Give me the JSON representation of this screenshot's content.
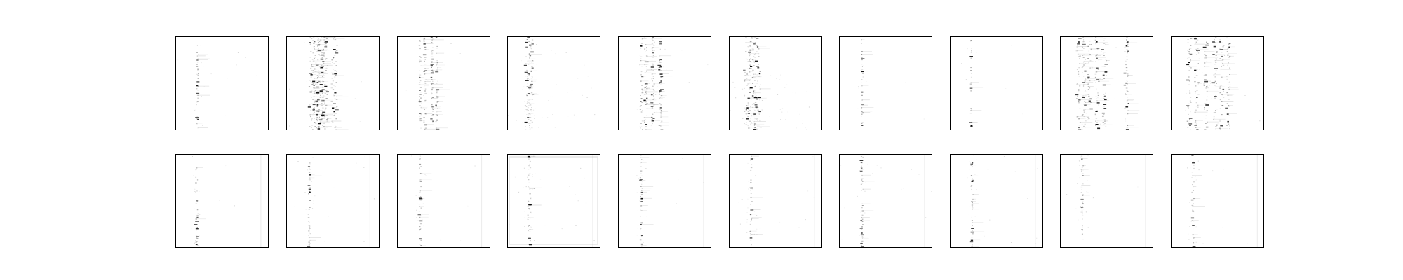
{
  "figure": {
    "background": "#ffffff",
    "frame_color": "#000000",
    "ink_color": "#000000"
  },
  "chart_data": {
    "type": "heatmap",
    "grid": {
      "rows": 2,
      "cols": 10
    },
    "colormap": "grayscale-inverted",
    "axes": {
      "ticks": false,
      "labels": false
    },
    "panels": [
      {
        "row": 0,
        "col": 0,
        "columns": [
          0.24
        ],
        "density": 0.55,
        "spread": 0.01,
        "noise": 0.02
      },
      {
        "row": 0,
        "col": 1,
        "columns": [
          0.28,
          0.32,
          0.37,
          0.42,
          0.52
        ],
        "density": 0.8,
        "spread": 0.03,
        "noise": 0.03
      },
      {
        "row": 0,
        "col": 2,
        "columns": [
          0.25,
          0.3,
          0.38,
          0.43
        ],
        "density": 0.55,
        "spread": 0.01,
        "noise": 0.02
      },
      {
        "row": 0,
        "col": 3,
        "columns": [
          0.22,
          0.26
        ],
        "density": 0.6,
        "spread": 0.025,
        "noise": 0.1,
        "dense_lower": true
      },
      {
        "row": 0,
        "col": 4,
        "columns": [
          0.25,
          0.3,
          0.38,
          0.46
        ],
        "density": 0.6,
        "spread": 0.015,
        "noise": 0.04
      },
      {
        "row": 0,
        "col": 5,
        "columns": [
          0.2,
          0.25,
          0.3
        ],
        "density": 0.7,
        "spread": 0.04,
        "noise": 0.14,
        "dense_lower": true
      },
      {
        "row": 0,
        "col": 6,
        "columns": [
          0.25
        ],
        "density": 0.6,
        "spread": 0.01,
        "noise": 0.01
      },
      {
        "row": 0,
        "col": 7,
        "columns": [
          0.23
        ],
        "density": 0.35,
        "spread": 0.005,
        "noise": 0.01
      },
      {
        "row": 0,
        "col": 8,
        "columns": [
          0.2,
          0.26,
          0.32,
          0.4,
          0.48,
          0.72
        ],
        "density": 0.55,
        "spread": 0.02,
        "noise": 0.03
      },
      {
        "row": 0,
        "col": 9,
        "columns": [
          0.2,
          0.28,
          0.38,
          0.48,
          0.55,
          0.62
        ],
        "density": 0.6,
        "spread": 0.02,
        "noise": 0.03
      },
      {
        "row": 1,
        "col": 0,
        "columns": [
          0.23
        ],
        "density": 0.45,
        "spread": 0.01,
        "noise": 0.02,
        "right_edge": 0.92
      },
      {
        "row": 1,
        "col": 1,
        "columns": [
          0.25
        ],
        "density": 0.45,
        "spread": 0.01,
        "noise": 0.03,
        "right_edge": 0.9
      },
      {
        "row": 1,
        "col": 2,
        "columns": [
          0.25
        ],
        "density": 0.45,
        "spread": 0.01,
        "noise": 0.03,
        "right_edge": 0.91
      },
      {
        "row": 1,
        "col": 3,
        "columns": [
          0.24
        ],
        "density": 0.5,
        "spread": 0.015,
        "noise": 0.06,
        "right_edge": 0.92,
        "frame_inner": true
      },
      {
        "row": 1,
        "col": 4,
        "columns": [
          0.25
        ],
        "density": 0.5,
        "spread": 0.01,
        "noise": 0.03,
        "right_edge": 0.92
      },
      {
        "row": 1,
        "col": 5,
        "columns": [
          0.24
        ],
        "density": 0.45,
        "spread": 0.01,
        "noise": 0.04,
        "right_edge": 0.92
      },
      {
        "row": 1,
        "col": 6,
        "columns": [
          0.25
        ],
        "density": 0.5,
        "spread": 0.01,
        "noise": 0.03,
        "right_edge": 0.92
      },
      {
        "row": 1,
        "col": 7,
        "columns": [
          0.24
        ],
        "density": 0.4,
        "spread": 0.01,
        "noise": 0.03,
        "right_edge": 0.92
      },
      {
        "row": 1,
        "col": 8,
        "columns": [
          0.24
        ],
        "density": 0.5,
        "spread": 0.01,
        "noise": 0.03,
        "right_edge": 0.92
      },
      {
        "row": 1,
        "col": 9,
        "columns": [
          0.24
        ],
        "density": 0.5,
        "spread": 0.01,
        "noise": 0.04,
        "right_edge": 0.93
      }
    ]
  }
}
